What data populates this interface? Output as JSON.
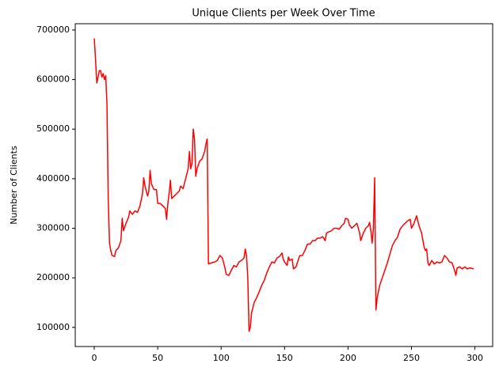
{
  "chart_data": {
    "type": "line",
    "title": "Unique Clients per Week Over Time",
    "y_label": "Number of Clients",
    "color": "#ff0000",
    "x": [
      0,
      1,
      2,
      3,
      4,
      5,
      6,
      7,
      8,
      9,
      10,
      11,
      12,
      13,
      14,
      16,
      17,
      19,
      21,
      22,
      23,
      25,
      27,
      28,
      30,
      32,
      34,
      36,
      38,
      39,
      40,
      42,
      43,
      44,
      45,
      47,
      49,
      50,
      52,
      54,
      56,
      57,
      58,
      59,
      60,
      61,
      63,
      65,
      67,
      68,
      70,
      72,
      74,
      75,
      76,
      77,
      78,
      79,
      80,
      81,
      83,
      85,
      87,
      88,
      89,
      90,
      92,
      95,
      97,
      99,
      101,
      103,
      104,
      106,
      108,
      110,
      112,
      114,
      116,
      118,
      119,
      120,
      121,
      122,
      123,
      124,
      126,
      128,
      130,
      132,
      134,
      136,
      138,
      140,
      142,
      144,
      146,
      148,
      149,
      150,
      152,
      153,
      154,
      156,
      157,
      159,
      161,
      162,
      164,
      166,
      168,
      170,
      172,
      174,
      176,
      178,
      180,
      182,
      183,
      185,
      187,
      189,
      191,
      193,
      195,
      197,
      198,
      200,
      201,
      203,
      205,
      207,
      209,
      210,
      212,
      214,
      216,
      217,
      218,
      219,
      220,
      221,
      222,
      223,
      225,
      227,
      229,
      231,
      233,
      235,
      237,
      239,
      241,
      243,
      245,
      247,
      249,
      250,
      252,
      254,
      256,
      258,
      260,
      261,
      262,
      263,
      264,
      266,
      268,
      270,
      272,
      274,
      276,
      278,
      280,
      282,
      284,
      285,
      286,
      288,
      290,
      292,
      294,
      296,
      299
    ],
    "values": [
      683000,
      640000,
      593000,
      605000,
      618000,
      618000,
      605000,
      612000,
      600000,
      608000,
      550000,
      360000,
      270000,
      255000,
      245000,
      243000,
      255000,
      260000,
      275000,
      320000,
      295000,
      310000,
      322000,
      335000,
      328000,
      335000,
      332000,
      345000,
      370000,
      402000,
      385000,
      365000,
      375000,
      417000,
      390000,
      378000,
      378000,
      350000,
      350000,
      345000,
      340000,
      318000,
      350000,
      370000,
      397000,
      360000,
      365000,
      370000,
      375000,
      385000,
      380000,
      400000,
      420000,
      455000,
      420000,
      430000,
      500000,
      480000,
      405000,
      420000,
      435000,
      440000,
      455000,
      470000,
      480000,
      228000,
      230000,
      232000,
      235000,
      245000,
      240000,
      220000,
      207000,
      205000,
      215000,
      225000,
      222000,
      232000,
      235000,
      240000,
      258000,
      245000,
      200000,
      92000,
      100000,
      130000,
      150000,
      160000,
      172000,
      185000,
      195000,
      210000,
      222000,
      232000,
      230000,
      240000,
      243000,
      250000,
      237000,
      232000,
      225000,
      242000,
      235000,
      238000,
      218000,
      222000,
      238000,
      245000,
      245000,
      255000,
      268000,
      268000,
      275000,
      275000,
      280000,
      280000,
      283000,
      275000,
      290000,
      293000,
      295000,
      300000,
      300000,
      298000,
      305000,
      310000,
      320000,
      318000,
      307000,
      300000,
      305000,
      310000,
      292000,
      275000,
      290000,
      300000,
      305000,
      312000,
      295000,
      270000,
      300000,
      402000,
      135000,
      160000,
      185000,
      200000,
      215000,
      230000,
      248000,
      265000,
      275000,
      282000,
      298000,
      305000,
      310000,
      315000,
      318000,
      300000,
      310000,
      325000,
      305000,
      290000,
      262000,
      255000,
      258000,
      230000,
      225000,
      235000,
      228000,
      232000,
      230000,
      232000,
      245000,
      240000,
      232000,
      230000,
      215000,
      205000,
      220000,
      222000,
      218000,
      222000,
      218000,
      220000,
      218000
    ],
    "xlim": [
      -15,
      314
    ],
    "ylim": [
      61400,
      712600
    ],
    "xticks": [
      0,
      50,
      100,
      150,
      200,
      250,
      300
    ],
    "yticks": [
      100000,
      200000,
      300000,
      400000,
      500000,
      600000,
      700000
    ]
  }
}
